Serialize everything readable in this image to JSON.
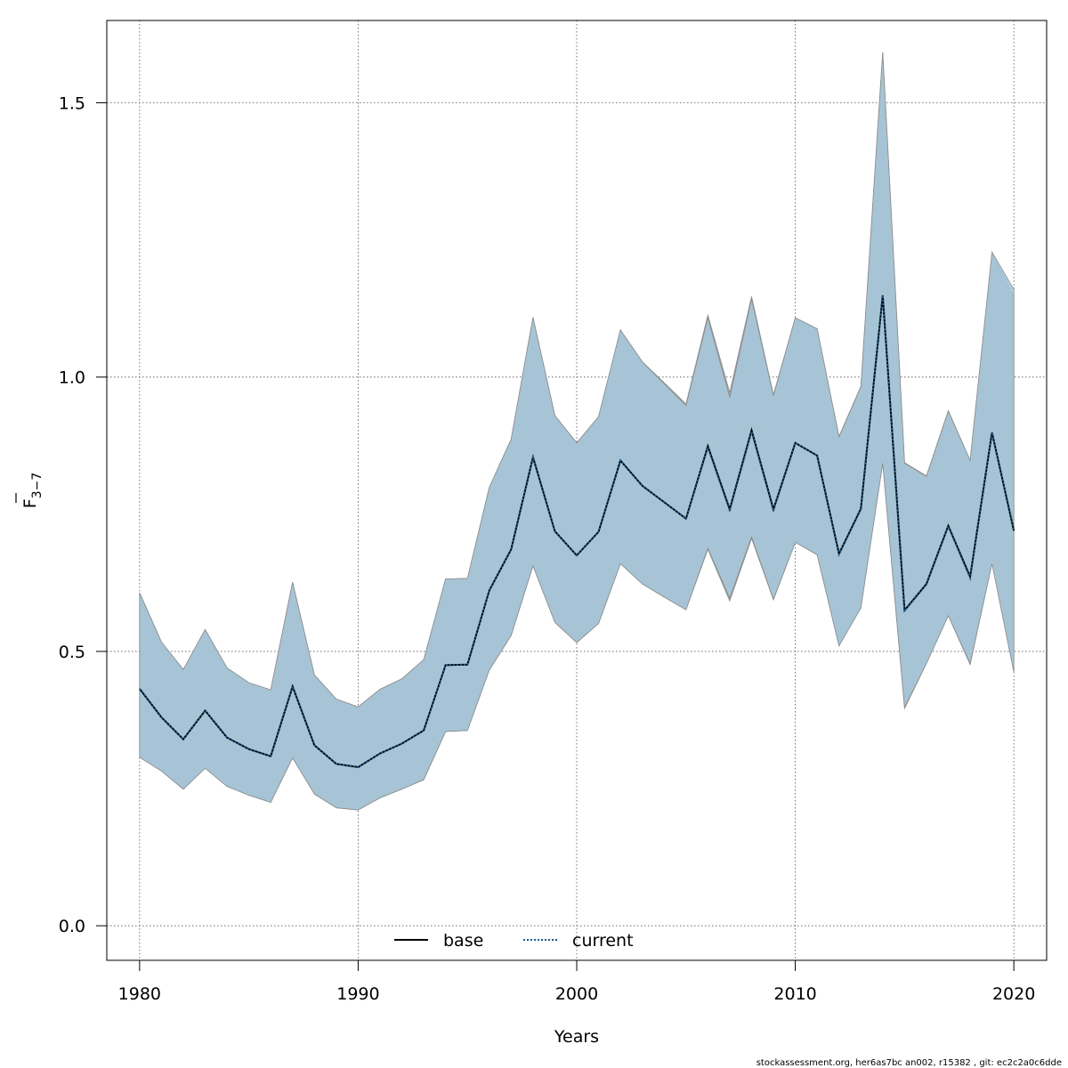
{
  "chart_data": {
    "type": "line",
    "title": "",
    "xlabel": "Years",
    "ylabel_main": "F",
    "ylabel_sub": "3−7",
    "xlim": [
      1978.5,
      2021.5
    ],
    "ylim": [
      -0.063,
      1.65
    ],
    "xticks": [
      1980,
      1990,
      2000,
      2010,
      2020
    ],
    "yticks": [
      0.0,
      0.5,
      1.0,
      1.5
    ],
    "ytick_labels": [
      "0.0",
      "0.5",
      "1.0",
      "1.5"
    ],
    "grid": true,
    "legend_position": "bottom-center",
    "x": [
      1980,
      1981,
      1982,
      1983,
      1984,
      1985,
      1986,
      1987,
      1988,
      1989,
      1990,
      1991,
      1992,
      1993,
      1994,
      1995,
      1996,
      1997,
      1998,
      1999,
      2000,
      2001,
      2002,
      2003,
      2004,
      2005,
      2006,
      2007,
      2008,
      2009,
      2010,
      2011,
      2012,
      2013,
      2014,
      2015,
      2016,
      2017,
      2018,
      2019,
      2020
    ],
    "series": [
      {
        "name": "base",
        "color": "#000000",
        "line_style": "solid",
        "band_color": "#a9a9a9",
        "values": [
          0.432,
          0.38,
          0.34,
          0.392,
          0.343,
          0.322,
          0.309,
          0.436,
          0.329,
          0.295,
          0.289,
          0.314,
          0.332,
          0.356,
          0.475,
          0.476,
          0.611,
          0.686,
          0.854,
          0.719,
          0.675,
          0.718,
          0.848,
          0.802,
          0.772,
          0.742,
          0.874,
          0.759,
          0.903,
          0.759,
          0.88,
          0.857,
          0.678,
          0.76,
          1.149,
          0.575,
          0.623,
          0.729,
          0.636,
          0.899,
          0.72
        ],
        "lower": [
          0.307,
          0.282,
          0.249,
          0.287,
          0.254,
          0.238,
          0.225,
          0.306,
          0.24,
          0.215,
          0.211,
          0.233,
          0.249,
          0.266,
          0.354,
          0.356,
          0.466,
          0.529,
          0.656,
          0.553,
          0.516,
          0.551,
          0.66,
          0.623,
          0.599,
          0.576,
          0.686,
          0.592,
          0.706,
          0.594,
          0.699,
          0.676,
          0.511,
          0.58,
          0.843,
          0.396,
          0.478,
          0.565,
          0.476,
          0.661,
          0.463
        ],
        "upper": [
          0.607,
          0.517,
          0.467,
          0.54,
          0.47,
          0.443,
          0.43,
          0.626,
          0.457,
          0.413,
          0.399,
          0.431,
          0.45,
          0.485,
          0.632,
          0.633,
          0.799,
          0.887,
          1.109,
          0.93,
          0.88,
          0.928,
          1.086,
          1.028,
          0.99,
          0.951,
          1.113,
          0.972,
          1.147,
          0.968,
          1.108,
          1.088,
          0.892,
          0.983,
          1.592,
          0.844,
          0.82,
          0.939,
          0.848,
          1.226,
          1.149
        ]
      },
      {
        "name": "current",
        "color": "#1b5a8a",
        "line_style": "dotted",
        "band_color": "#a6c9dd",
        "values": [
          0.432,
          0.38,
          0.34,
          0.392,
          0.343,
          0.322,
          0.309,
          0.436,
          0.329,
          0.295,
          0.289,
          0.314,
          0.332,
          0.356,
          0.475,
          0.476,
          0.611,
          0.686,
          0.854,
          0.719,
          0.675,
          0.718,
          0.848,
          0.802,
          0.772,
          0.742,
          0.872,
          0.757,
          0.901,
          0.757,
          0.88,
          0.857,
          0.677,
          0.759,
          1.149,
          0.574,
          0.622,
          0.728,
          0.634,
          0.899,
          0.722
        ],
        "lower": [
          0.307,
          0.282,
          0.249,
          0.287,
          0.254,
          0.238,
          0.225,
          0.306,
          0.24,
          0.215,
          0.211,
          0.233,
          0.249,
          0.266,
          0.354,
          0.356,
          0.466,
          0.529,
          0.656,
          0.553,
          0.516,
          0.551,
          0.66,
          0.623,
          0.599,
          0.576,
          0.688,
          0.597,
          0.709,
          0.595,
          0.699,
          0.676,
          0.51,
          0.579,
          0.843,
          0.398,
          0.478,
          0.565,
          0.478,
          0.66,
          0.462
        ],
        "upper": [
          0.607,
          0.517,
          0.467,
          0.54,
          0.47,
          0.443,
          0.43,
          0.626,
          0.457,
          0.413,
          0.399,
          0.431,
          0.45,
          0.485,
          0.632,
          0.633,
          0.799,
          0.887,
          1.109,
          0.93,
          0.88,
          0.928,
          1.086,
          1.028,
          0.988,
          0.948,
          1.108,
          0.963,
          1.142,
          0.966,
          1.108,
          1.088,
          0.891,
          0.982,
          1.592,
          0.843,
          0.819,
          0.938,
          0.848,
          1.228,
          1.16
        ]
      }
    ]
  },
  "footer": {
    "text": "stockassessment.org, her6as7bc  an002, r15382 , git: ec2c2a0c6dde"
  }
}
